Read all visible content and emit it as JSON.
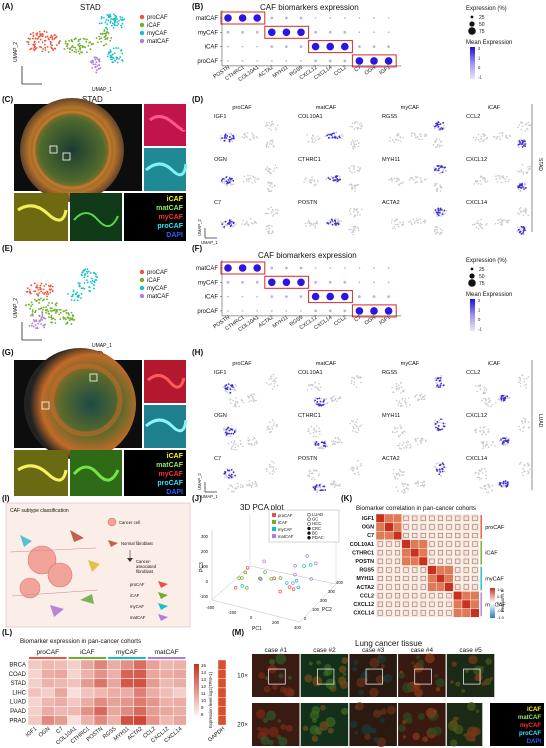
{
  "colors": {
    "proCAF": "#e8553e",
    "iCAF": "#6fae2c",
    "myCAF": "#14c0c6",
    "matCAF": "#b07ee0",
    "box": "#d42a2a",
    "dot": "#2a16e0",
    "heat_hi": "#c9301e",
    "heat_lo": "#fff5f2",
    "gapdh": "#d9502f"
  },
  "subtypes": [
    "proCAF",
    "iCAF",
    "myCAF",
    "matCAF"
  ],
  "panels": {
    "A": {
      "letter": "(A)",
      "title": "STAD",
      "xlabel": "UMAP_1",
      "ylabel": "UMAP_2"
    },
    "B": {
      "letter": "(B)",
      "title": "CAF biomarkers expression"
    },
    "C": {
      "letter": "(C)",
      "title": "STAD"
    },
    "D": {
      "letter": "(D)",
      "side": "STAD",
      "xlabel": "UMAP_1",
      "ylabel": "UMAP_2"
    },
    "E": {
      "letter": "(E)",
      "xlabel": "UMAP_1",
      "ylabel": "UMAP_2"
    },
    "F": {
      "letter": "(F)",
      "title": "CAF biomarkers expression"
    },
    "G": {
      "letter": "(G)",
      "title": "LUAD"
    },
    "H": {
      "letter": "(H)",
      "side": "LUAD",
      "xlabel": "UMAP_1",
      "ylabel": "UMAP_2"
    },
    "I": {
      "letter": "(I)",
      "title": "CAF subtype classification",
      "cancer": "Cancer cell",
      "normal": "Normal fibroblast",
      "caf1": "Cancer-",
      "caf2": "associated",
      "caf3": "fibroblast"
    },
    "J": {
      "letter": "(J)",
      "title": "3D PCA plot",
      "xlabel": "PC1",
      "ylabel": "PC2",
      "zlabel": "PC3",
      "x_ticks": [
        "-400",
        "-200",
        "0",
        "200",
        "400"
      ],
      "y_ticks": [
        "0",
        "100",
        "200",
        "300",
        "400"
      ],
      "z_ticks": [
        "-100",
        "0",
        "100",
        "200",
        "300"
      ],
      "cohort_legend": [
        "LUAD",
        "GC",
        "HCC",
        "CRC",
        "BC",
        "PDAC"
      ]
    },
    "K": {
      "letter": "(K)",
      "title": "Biomarker correlation in pan-cancer cohorts",
      "colorbar_title": "Pearson's R",
      "colorbar_ticks": [
        "1.0",
        "0.5",
        "0",
        "-0.5",
        "-1.0"
      ]
    },
    "L": {
      "letter": "(L)",
      "title": "Biomarker expression in pan-cancer cohorts",
      "colorbar_title": "Expression level log2(TPM+1)",
      "colorbar_ticks": [
        "15",
        "14",
        "13",
        "12",
        "11",
        "10",
        "9",
        "8"
      ],
      "gapdh": "GAPDH"
    },
    "M": {
      "letter": "(M)",
      "title": "Lung cancer tissue",
      "cases": [
        "case #1",
        "case #2",
        "case #3",
        "case #4",
        "case #5"
      ],
      "rows": [
        "10×",
        "20×"
      ]
    }
  },
  "if_legend": [
    "iCAF",
    "matCAF",
    "myCAF",
    "proCAF",
    "DAPI"
  ],
  "if_colors": [
    "#ffff00",
    "#8ef05a",
    "#ff3030",
    "#2ee6ff",
    "#2e5bff"
  ],
  "dotplot": {
    "expression_title": "Expression (%)",
    "expression_levels": [
      "25",
      "50",
      "75"
    ],
    "mean_title": "Mean Expression",
    "mean_ticks_B": [
      "2",
      "1",
      "0",
      "-1"
    ],
    "mean_ticks_F": [
      "2",
      "1",
      "0",
      "-1"
    ],
    "rows": [
      "matCAF",
      "myCAF",
      "iCAF",
      "proCAF"
    ],
    "genes": [
      "POSTN",
      "CTHRC1",
      "COL10A1",
      "ACTA2",
      "MYH11",
      "RGS5",
      "CXCL12",
      "CXCL14",
      "CCL2",
      "C7",
      "OGN",
      "IGF1"
    ],
    "genes_F": [
      "POSTN",
      "CTHRC1",
      "COL10A1",
      "ACTA2",
      "MYH11",
      "RGS5",
      "CXCL12",
      "CXCL14",
      "CCL2",
      "C7",
      "OGN",
      "IGF1"
    ]
  },
  "feature_D": {
    "cols": [
      "proCAF",
      "matCAF",
      "myCAF",
      "iCAF"
    ],
    "genes": [
      [
        "IGF1",
        "COL10A1",
        "RGS5",
        "CCL2"
      ],
      [
        "OGN",
        "CTHRC1",
        "MYH11",
        "CXCL12"
      ],
      [
        "C7",
        "POSTN",
        "ACTA2",
        "CXCL14"
      ]
    ]
  },
  "feature_H": {
    "cols": [
      "proCAF",
      "matCAF",
      "myCAF",
      "iCAF"
    ],
    "genes": [
      [
        "IGF1",
        "COL10A1",
        "RGS5",
        "CCL2"
      ],
      [
        "OGN",
        "CTHRC1",
        "MYH11",
        "CXCL12"
      ],
      [
        "C7",
        "POSTN",
        "ACTA2",
        "CXCL14"
      ]
    ]
  },
  "corr_genes": [
    "IGF1",
    "OGN",
    "C7",
    "COL10A1",
    "CTHRC1",
    "POSTN",
    "RGS5",
    "MYH11",
    "ACTA2",
    "CCL2",
    "CXCL12",
    "CXCL14"
  ],
  "heat_rows": [
    "BRCA",
    "COAD",
    "STAD",
    "LIHC",
    "LUAD",
    "PAAD",
    "PRAD"
  ],
  "heat_cols": [
    "IGF1",
    "OGN",
    "C7",
    "COL10A1",
    "CTHRC1",
    "POSTN",
    "RGS5",
    "MYH11",
    "ACTA2",
    "CCL2",
    "CXCL12",
    "CXCL14"
  ],
  "heat_values": [
    [
      9.6,
      10.2,
      10.0,
      9.4,
      10.8,
      12.0,
      10.6,
      11.6,
      12.8,
      11.0,
      10.2,
      10.4
    ],
    [
      9.2,
      10.6,
      10.8,
      9.2,
      10.4,
      11.6,
      10.4,
      13.2,
      13.4,
      10.8,
      10.6,
      10.8
    ],
    [
      9.4,
      10.4,
      10.2,
      9.8,
      11.2,
      12.6,
      10.8,
      13.6,
      13.8,
      11.2,
      10.2,
      10.6
    ],
    [
      9.8,
      9.4,
      10.8,
      8.8,
      9.8,
      10.2,
      10.6,
      10.6,
      12.2,
      10.6,
      10.0,
      9.4
    ],
    [
      9.2,
      10.2,
      10.6,
      9.6,
      10.6,
      11.8,
      11.0,
      11.4,
      12.4,
      11.4,
      10.4,
      10.6
    ],
    [
      9.4,
      10.6,
      10.2,
      10.2,
      11.6,
      13.0,
      10.8,
      11.8,
      13.0,
      11.2,
      10.8,
      10.6
    ],
    [
      9.6,
      11.8,
      11.2,
      8.8,
      10.4,
      11.8,
      10.4,
      13.8,
      14.2,
      11.4,
      10.2,
      10.8
    ]
  ]
}
